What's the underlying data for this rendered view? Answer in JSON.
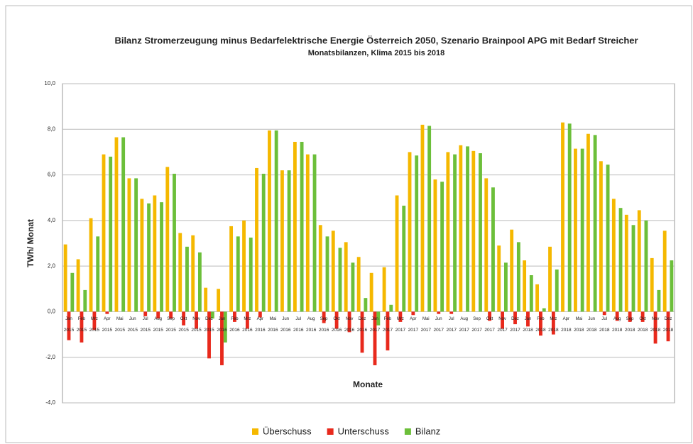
{
  "chart_data": {
    "type": "bar",
    "title": "Bilanz Stromerzeugung minus Bedarfelektrische Energie Österreich 2050, Szenario Brainpool APG mit Bedarf Streicher",
    "subtitle": "Monatsbilanzen, Klima 2015 bis 2018",
    "x_label": "Monate",
    "y_label": "TWh/ Monat",
    "categories": [
      [
        "Jan",
        "2015"
      ],
      [
        "Feb",
        "2015"
      ],
      [
        "Mrz",
        "2015"
      ],
      [
        "Apr",
        "2015"
      ],
      [
        "Mai",
        "2015"
      ],
      [
        "Jun",
        "2015"
      ],
      [
        "Jul",
        "2015"
      ],
      [
        "Aug",
        "2015"
      ],
      [
        "Sep",
        "2015"
      ],
      [
        "Okt",
        "2015"
      ],
      [
        "Nov",
        "2015"
      ],
      [
        "Dez",
        "2015"
      ],
      [
        "Jan",
        "2016"
      ],
      [
        "Feb",
        "2016"
      ],
      [
        "Mrz",
        "2016"
      ],
      [
        "Apr",
        "2016"
      ],
      [
        "Mai",
        "2016"
      ],
      [
        "Jun",
        "2016"
      ],
      [
        "Jul",
        "2016"
      ],
      [
        "Aug",
        "2016"
      ],
      [
        "Sep",
        "2016"
      ],
      [
        "Okt",
        "2016"
      ],
      [
        "Nov",
        "2016"
      ],
      [
        "Dez",
        "2016"
      ],
      [
        "Jan",
        "2017"
      ],
      [
        "Feb",
        "2017"
      ],
      [
        "Mrz",
        "2017"
      ],
      [
        "Apr",
        "2017"
      ],
      [
        "Mai",
        "2017"
      ],
      [
        "Jun",
        "2017"
      ],
      [
        "Jul",
        "2017"
      ],
      [
        "Aug",
        "2017"
      ],
      [
        "Sep",
        "2017"
      ],
      [
        "Okt",
        "2017"
      ],
      [
        "Nov",
        "2017"
      ],
      [
        "Dez",
        "2017"
      ],
      [
        "Jan",
        "2018"
      ],
      [
        "Feb",
        "2018"
      ],
      [
        "Mrz",
        "2018"
      ],
      [
        "Apr",
        "2018"
      ],
      [
        "Mai",
        "2018"
      ],
      [
        "Jun",
        "2018"
      ],
      [
        "Jul",
        "2018"
      ],
      [
        "Aug",
        "2018"
      ],
      [
        "Sep",
        "2018"
      ],
      [
        "Okt",
        "2018"
      ],
      [
        "Nov",
        "2018"
      ],
      [
        "Dez",
        "2018"
      ]
    ],
    "series": [
      {
        "name": "Überschuss",
        "color": "#f5b800",
        "values": [
          2.95,
          2.3,
          4.1,
          6.9,
          7.65,
          5.85,
          4.95,
          5.1,
          6.35,
          3.45,
          3.35,
          1.05,
          1.0,
          3.75,
          4.0,
          6.3,
          7.95,
          6.2,
          7.45,
          6.9,
          3.8,
          3.55,
          3.05,
          2.4,
          1.7,
          1.95,
          5.1,
          7.0,
          8.2,
          5.8,
          7.0,
          7.3,
          7.05,
          5.85,
          2.9,
          3.6,
          2.25,
          1.2,
          2.85,
          8.3,
          7.15,
          7.8,
          6.6,
          4.95,
          4.25,
          4.45,
          2.35,
          3.55
        ]
      },
      {
        "name": "Unterschuss",
        "color": "#e8291c",
        "values": [
          -1.25,
          -1.35,
          -0.8,
          -0.1,
          0,
          0,
          -0.2,
          -0.3,
          -0.3,
          -0.6,
          -0.75,
          -2.05,
          -2.35,
          -0.45,
          -0.75,
          -0.25,
          0,
          0,
          0,
          0,
          -0.5,
          -0.75,
          -0.9,
          -1.8,
          -2.35,
          -1.7,
          -0.45,
          -0.15,
          0,
          -0.1,
          -0.1,
          0,
          0,
          -0.4,
          -0.75,
          -0.55,
          -0.65,
          -1.05,
          -1.0,
          0,
          0,
          0,
          -0.15,
          -0.4,
          -0.45,
          -0.45,
          -1.4,
          -1.3
        ]
      },
      {
        "name": "Bilanz",
        "color": "#6cbf3a",
        "values": [
          1.7,
          0.95,
          3.3,
          6.8,
          7.65,
          5.85,
          4.75,
          4.8,
          6.05,
          2.85,
          2.6,
          -0.3,
          -1.35,
          3.3,
          3.25,
          6.05,
          7.95,
          6.2,
          7.45,
          6.9,
          3.3,
          2.8,
          2.15,
          0.6,
          -0.6,
          0.3,
          4.65,
          6.85,
          8.15,
          5.7,
          6.9,
          7.25,
          6.95,
          5.45,
          2.15,
          3.05,
          1.6,
          0.15,
          1.85,
          8.25,
          7.15,
          7.75,
          6.45,
          4.55,
          3.8,
          4.0,
          0.95,
          2.25
        ]
      }
    ],
    "ylim": [
      -4,
      10
    ],
    "yticks": [
      {
        "value": -4,
        "label": "-4,0"
      },
      {
        "value": -2,
        "label": "-2,0"
      },
      {
        "value": 0,
        "label": "0,0"
      },
      {
        "value": 2,
        "label": "2,0"
      },
      {
        "value": 4,
        "label": "4,0"
      },
      {
        "value": 6,
        "label": "6,0"
      },
      {
        "value": 8,
        "label": "8,0"
      },
      {
        "value": 10,
        "label": "10,0"
      }
    ],
    "grid": true
  }
}
